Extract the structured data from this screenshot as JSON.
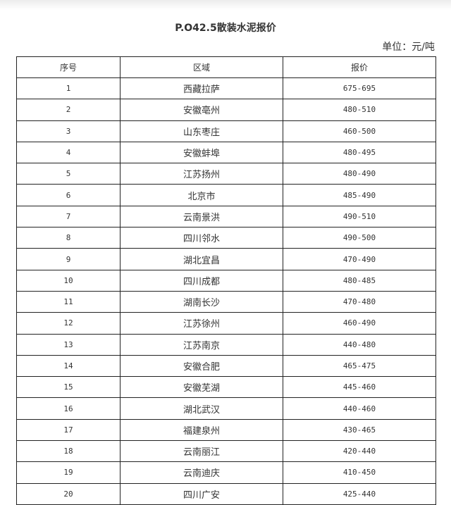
{
  "title": "P.O42.5散装水泥报价",
  "unit": "单位：元/吨",
  "table": {
    "headers": [
      "序号",
      "区域",
      "报价"
    ],
    "rows": [
      {
        "no": "1",
        "region": "西藏拉萨",
        "price": "675-695"
      },
      {
        "no": "2",
        "region": "安徽亳州",
        "price": "480-510"
      },
      {
        "no": "3",
        "region": "山东枣庄",
        "price": "460-500"
      },
      {
        "no": "4",
        "region": "安徽蚌埠",
        "price": "480-495"
      },
      {
        "no": "5",
        "region": "江苏扬州",
        "price": "480-490"
      },
      {
        "no": "6",
        "region": "北京市",
        "price": "485-490"
      },
      {
        "no": "7",
        "region": "云南景洪",
        "price": "490-510"
      },
      {
        "no": "8",
        "region": "四川邻水",
        "price": "490-500"
      },
      {
        "no": "9",
        "region": "湖北宜昌",
        "price": "470-490"
      },
      {
        "no": "10",
        "region": "四川成都",
        "price": "480-485"
      },
      {
        "no": "11",
        "region": "湖南长沙",
        "price": "470-480"
      },
      {
        "no": "12",
        "region": "江苏徐州",
        "price": "460-490"
      },
      {
        "no": "13",
        "region": "江苏南京",
        "price": "440-480"
      },
      {
        "no": "14",
        "region": "安徽合肥",
        "price": "465-475"
      },
      {
        "no": "15",
        "region": "安徽芜湖",
        "price": "445-460"
      },
      {
        "no": "16",
        "region": "湖北武汉",
        "price": "440-460"
      },
      {
        "no": "17",
        "region": "福建泉州",
        "price": "430-465"
      },
      {
        "no": "18",
        "region": "云南丽江",
        "price": "420-440"
      },
      {
        "no": "19",
        "region": "云南迪庆",
        "price": "410-450"
      },
      {
        "no": "20",
        "region": "四川广安",
        "price": "425-440"
      }
    ]
  }
}
